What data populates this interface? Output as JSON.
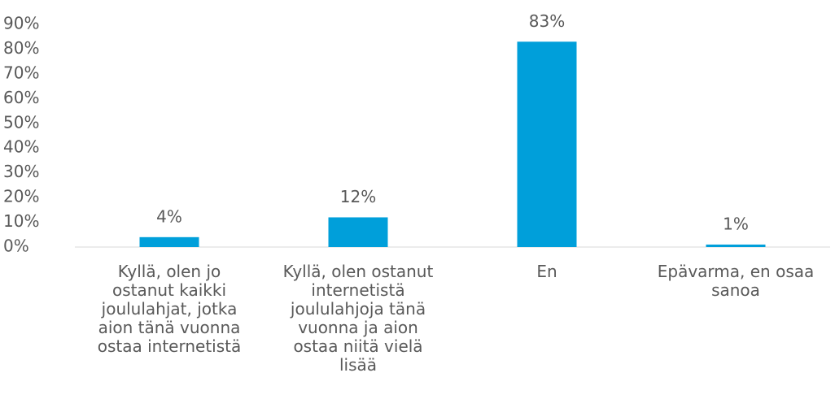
{
  "chart_data": {
    "type": "bar",
    "categories": [
      "Kyllä, olen jo\nostanut kaikki\njoululahjat, jotka\naion tänä vuonna\nostaa internetistä",
      "Kyllä, olen ostanut\ninternetistä\njoululahjoja tänä\nvuonna ja aion\nostaa niitä vielä\nlisää",
      "En",
      "Epävarma, en osaa\nsanoa"
    ],
    "values": [
      4,
      12,
      83,
      1
    ],
    "value_labels": [
      "4%",
      "12%",
      "83%",
      "1%"
    ],
    "color": "#009fda",
    "ylim": [
      0,
      90
    ],
    "yticks": [
      {
        "value": 0,
        "label": "0%"
      },
      {
        "value": 10,
        "label": "10%"
      },
      {
        "value": 20,
        "label": "20%"
      },
      {
        "value": 30,
        "label": "30%"
      },
      {
        "value": 40,
        "label": "40%"
      },
      {
        "value": 50,
        "label": "50%"
      },
      {
        "value": 60,
        "label": "60%"
      },
      {
        "value": 70,
        "label": "70%"
      },
      {
        "value": 80,
        "label": "80%"
      },
      {
        "value": 90,
        "label": "90%"
      }
    ],
    "grid": false
  }
}
